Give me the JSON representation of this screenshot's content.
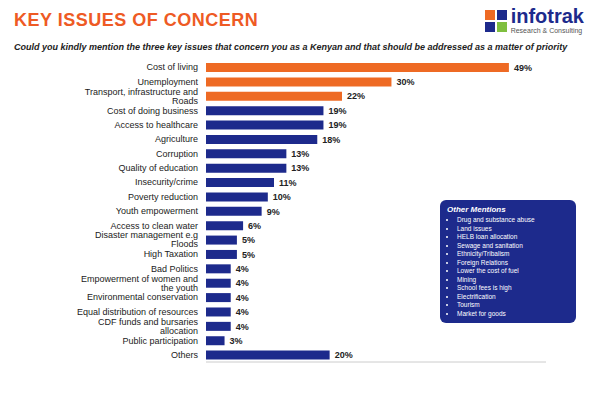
{
  "chart_data": {
    "type": "bar",
    "title": "KEY ISSUES OF CONCERN",
    "subtitle": "Could you kindly mention the three key issues that concern you as a Kenyan and that should be addressed as a matter of priority",
    "orientation": "horizontal",
    "categories": [
      "Cost of living",
      "Unemployment",
      "Transport, infrastructure and Roads",
      "Cost of doing business",
      "Access to healthcare",
      "Agriculture",
      "Corruption",
      "Quality of education",
      "Insecurity/crime",
      "Poverty reduction",
      "Youth empowerment",
      "Access to clean water",
      "Disaster management e.g Floods",
      "High Taxation",
      "Bad Politics",
      "Empowerment of women and the youth",
      "Environmental conservation",
      "Equal distribution of resources",
      "CDF funds and bursaries allocation",
      "Public participation",
      "Others"
    ],
    "values": [
      49,
      30,
      22,
      19,
      19,
      18,
      13,
      13,
      11,
      10,
      9,
      6,
      5,
      5,
      4,
      4,
      4,
      4,
      4,
      3,
      20
    ],
    "value_labels": [
      "49%",
      "30%",
      "22%",
      "19%",
      "19%",
      "18%",
      "13%",
      "13%",
      "11%",
      "10%",
      "9%",
      "6%",
      "5%",
      "5%",
      "4%",
      "4%",
      "4%",
      "4%",
      "4%",
      "3%",
      "20%"
    ],
    "colors": [
      "#ee6a24",
      "#ee6a24",
      "#ee6a24",
      "#1d2a8c",
      "#1d2a8c",
      "#1d2a8c",
      "#1d2a8c",
      "#1d2a8c",
      "#1d2a8c",
      "#1d2a8c",
      "#1d2a8c",
      "#1d2a8c",
      "#1d2a8c",
      "#1d2a8c",
      "#1d2a8c",
      "#1d2a8c",
      "#1d2a8c",
      "#1d2a8c",
      "#1d2a8c",
      "#1d2a8c",
      "#1d2a8c"
    ],
    "xlim": [
      0,
      55
    ],
    "grid": false,
    "data_labels": true,
    "tick_labels": "y"
  },
  "logo": {
    "name": "infotrak",
    "tagline": "Research & Consulting"
  },
  "other_mentions": {
    "title": "Other Mentions",
    "items": [
      "Drug and substance abuse",
      "Land issues",
      "HELB loan allocation",
      "Sewage and sanitation",
      "Ethnicity/Tribalism",
      "Foreign Relations",
      "Lower the cost of fuel",
      "Mining",
      "School fees is high",
      "Electrification",
      "Tourism",
      "Market for goods"
    ]
  }
}
